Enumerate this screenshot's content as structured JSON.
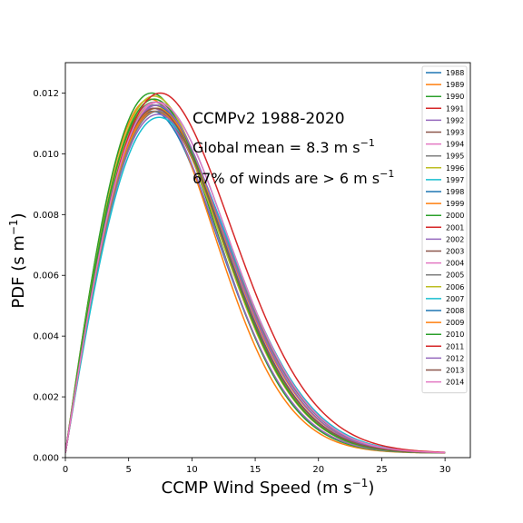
{
  "chart_data": {
    "type": "line",
    "xlabel_main": "CCMP Wind Speed (m s",
    "xlabel_sup": "−1",
    "xlabel_end": ")",
    "ylabel_main": "PDF (s m",
    "ylabel_sup": "−1",
    "ylabel_end": ")",
    "xlim": [
      0,
      32
    ],
    "ylim": [
      0,
      0.013
    ],
    "xticks": [
      0,
      5,
      10,
      15,
      20,
      25,
      30
    ],
    "xtick_labels": [
      "0",
      "5",
      "10",
      "15",
      "20",
      "25",
      "30"
    ],
    "yticks": [
      0,
      0.002,
      0.004,
      0.006,
      0.008,
      0.01,
      0.012
    ],
    "ytick_labels": [
      "0.000",
      "0.002",
      "0.004",
      "0.006",
      "0.008",
      "0.010",
      "0.012"
    ],
    "grid": false,
    "legend_position": "top-right",
    "annotations": {
      "title": "CCMPv2 1988-2020",
      "mean_main": "Global mean = 8.3 m s",
      "mean_sup": "−1",
      "pct_main": "67% of winds are > 6 m s",
      "pct_sup": "−1"
    },
    "series": [
      {
        "name": "1988",
        "color": "#1f77b4",
        "peak_x": 6.9,
        "peak_y": 0.0114
      },
      {
        "name": "1989",
        "color": "#ff7f0e",
        "peak_x": 6.7,
        "peak_y": 0.0118
      },
      {
        "name": "1990",
        "color": "#2ca02c",
        "peak_x": 6.8,
        "peak_y": 0.012
      },
      {
        "name": "1991",
        "color": "#d62728",
        "peak_x": 7.0,
        "peak_y": 0.0116
      },
      {
        "name": "1992",
        "color": "#9467bd",
        "peak_x": 6.9,
        "peak_y": 0.0115
      },
      {
        "name": "1993",
        "color": "#8c564b",
        "peak_x": 7.1,
        "peak_y": 0.0114
      },
      {
        "name": "1994",
        "color": "#e377c2",
        "peak_x": 7.0,
        "peak_y": 0.0116
      },
      {
        "name": "1995",
        "color": "#7f7f7f",
        "peak_x": 7.2,
        "peak_y": 0.0115
      },
      {
        "name": "1996",
        "color": "#bcbd22",
        "peak_x": 7.0,
        "peak_y": 0.0119
      },
      {
        "name": "1997",
        "color": "#17becf",
        "peak_x": 7.3,
        "peak_y": 0.0117
      },
      {
        "name": "1998",
        "color": "#1f77b4",
        "peak_x": 7.1,
        "peak_y": 0.0116
      },
      {
        "name": "1999",
        "color": "#ff7f0e",
        "peak_x": 7.2,
        "peak_y": 0.0114
      },
      {
        "name": "2000",
        "color": "#2ca02c",
        "peak_x": 7.0,
        "peak_y": 0.0117
      },
      {
        "name": "2001",
        "color": "#d62728",
        "peak_x": 7.1,
        "peak_y": 0.0115
      },
      {
        "name": "2002",
        "color": "#9467bd",
        "peak_x": 7.3,
        "peak_y": 0.0113
      },
      {
        "name": "2003",
        "color": "#8c564b",
        "peak_x": 7.2,
        "peak_y": 0.0116
      },
      {
        "name": "2004",
        "color": "#e377c2",
        "peak_x": 7.1,
        "peak_y": 0.0117
      },
      {
        "name": "2005",
        "color": "#7f7f7f",
        "peak_x": 7.3,
        "peak_y": 0.0114
      },
      {
        "name": "2006",
        "color": "#bcbd22",
        "peak_x": 7.0,
        "peak_y": 0.0116
      },
      {
        "name": "2007",
        "color": "#17becf",
        "peak_x": 7.4,
        "peak_y": 0.0112
      },
      {
        "name": "2008",
        "color": "#1f77b4",
        "peak_x": 7.1,
        "peak_y": 0.0116
      },
      {
        "name": "2009",
        "color": "#ff7f0e",
        "peak_x": 7.2,
        "peak_y": 0.0115
      },
      {
        "name": "2010",
        "color": "#2ca02c",
        "peak_x": 7.0,
        "peak_y": 0.0118
      },
      {
        "name": "2011",
        "color": "#d62728",
        "peak_x": 7.5,
        "peak_y": 0.012
      },
      {
        "name": "2012",
        "color": "#9467bd",
        "peak_x": 7.2,
        "peak_y": 0.0116
      },
      {
        "name": "2013",
        "color": "#8c564b",
        "peak_x": 7.1,
        "peak_y": 0.0115
      },
      {
        "name": "2014",
        "color": "#e377c2",
        "peak_x": 7.3,
        "peak_y": 0.0117
      }
    ]
  }
}
